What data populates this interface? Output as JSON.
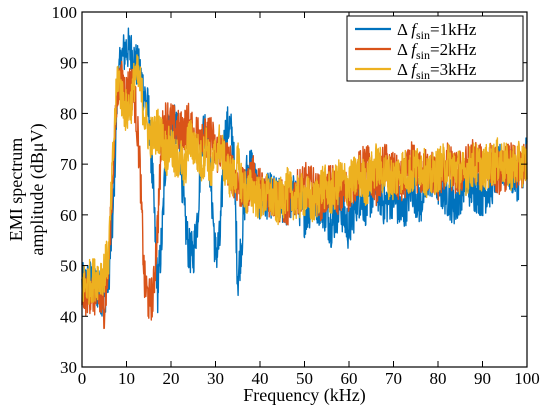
{
  "chart_data": {
    "type": "line",
    "xlabel": "Frequency (kHz)",
    "ylabel_line1": "EMI spectrum",
    "ylabel_line2": "amplitude  (dBμV)",
    "xlim": [
      0,
      100
    ],
    "ylim": [
      30,
      100
    ],
    "x_ticks": [
      0,
      10,
      20,
      30,
      40,
      50,
      60,
      70,
      80,
      90,
      100
    ],
    "y_ticks": [
      30,
      40,
      50,
      60,
      70,
      80,
      90,
      100
    ],
    "grid": false,
    "legend_position": "top-right",
    "series": [
      {
        "name": "Δfsin=1kHz",
        "legend": {
          "prefix": "Δ ",
          "var": "f",
          "sub": "sin",
          "suffix": "=1kHz"
        },
        "color": "#0072BD",
        "x": [
          0,
          2,
          4,
          5,
          6,
          7,
          8,
          9,
          10,
          11,
          12,
          13,
          14,
          15,
          16,
          17,
          18,
          19,
          20,
          21,
          22,
          23,
          24,
          25,
          26,
          27,
          28,
          29,
          30,
          31,
          32,
          33,
          34,
          35,
          36,
          37,
          38,
          40,
          42,
          44,
          46,
          48,
          50,
          52,
          54,
          56,
          58,
          60,
          62,
          64,
          66,
          68,
          70,
          72,
          74,
          76,
          78,
          80,
          82,
          84,
          86,
          88,
          90,
          92,
          94,
          96,
          98,
          100
        ],
        "y": [
          46,
          47,
          45,
          44,
          48,
          60,
          86,
          91,
          93,
          92,
          90,
          88,
          84,
          80,
          65,
          45,
          56,
          75,
          78,
          77,
          74,
          60,
          53,
          52,
          60,
          76,
          78,
          66,
          52,
          55,
          75,
          78,
          74,
          47,
          56,
          68,
          70,
          62,
          64,
          63,
          62,
          64,
          60,
          63,
          62,
          58,
          62,
          57,
          64,
          62,
          66,
          62,
          64,
          60,
          66,
          62,
          68,
          66,
          64,
          62,
          67,
          65,
          64,
          66,
          70,
          69,
          67,
          72
        ]
      },
      {
        "name": "Δfsin=2kHz",
        "legend": {
          "prefix": "Δ ",
          "var": "f",
          "sub": "sin",
          "suffix": "=2kHz"
        },
        "color": "#D95319",
        "x": [
          0,
          2,
          4,
          5,
          6,
          7,
          8,
          9,
          10,
          11,
          12,
          13,
          14,
          15,
          16,
          17,
          18,
          19,
          20,
          21,
          22,
          23,
          24,
          25,
          26,
          27,
          28,
          29,
          30,
          31,
          32,
          33,
          34,
          35,
          36,
          37,
          38,
          40,
          42,
          44,
          46,
          48,
          50,
          52,
          54,
          56,
          58,
          60,
          62,
          64,
          66,
          68,
          70,
          72,
          74,
          76,
          78,
          80,
          82,
          84,
          86,
          88,
          90,
          92,
          94,
          96,
          98,
          100
        ],
        "y": [
          44,
          45,
          43,
          42,
          50,
          70,
          85,
          86,
          84,
          86,
          82,
          70,
          47,
          43,
          44,
          58,
          76,
          79,
          78,
          77,
          76,
          77,
          78,
          75,
          76,
          77,
          74,
          76,
          72,
          73,
          71,
          70,
          68,
          66,
          65,
          64,
          68,
          65,
          64,
          63,
          62,
          64,
          66,
          65,
          63,
          66,
          64,
          65,
          68,
          70,
          66,
          70,
          68,
          66,
          70,
          68,
          69,
          67,
          70,
          68,
          69,
          71,
          69,
          70,
          68,
          70,
          69,
          70
        ]
      },
      {
        "name": "Δfsin=3kHz",
        "legend": {
          "prefix": "Δ ",
          "var": "f",
          "sub": "sin",
          "suffix": "=3kHz"
        },
        "color": "#EDB120",
        "x": [
          0,
          2,
          4,
          5,
          6,
          7,
          8,
          9,
          10,
          11,
          12,
          13,
          14,
          15,
          16,
          17,
          18,
          19,
          20,
          21,
          22,
          23,
          24,
          25,
          26,
          27,
          28,
          29,
          30,
          31,
          32,
          33,
          34,
          35,
          36,
          37,
          38,
          40,
          42,
          44,
          46,
          48,
          50,
          52,
          54,
          56,
          58,
          60,
          62,
          64,
          66,
          68,
          70,
          72,
          74,
          76,
          78,
          80,
          82,
          84,
          86,
          88,
          90,
          92,
          94,
          96,
          98,
          100
        ],
        "y": [
          46,
          47,
          48,
          49,
          52,
          72,
          88,
          83,
          80,
          82,
          88,
          86,
          80,
          76,
          75,
          77,
          75,
          72,
          74,
          70,
          72,
          68,
          75,
          74,
          72,
          70,
          74,
          68,
          72,
          74,
          70,
          68,
          67,
          70,
          66,
          64,
          65,
          63,
          64,
          62,
          65,
          63,
          64,
          62,
          66,
          64,
          67,
          66,
          68,
          66,
          70,
          68,
          67,
          69,
          68,
          70,
          67,
          69,
          70,
          69,
          68,
          70,
          69,
          70,
          71,
          69,
          70,
          70
        ]
      }
    ]
  }
}
